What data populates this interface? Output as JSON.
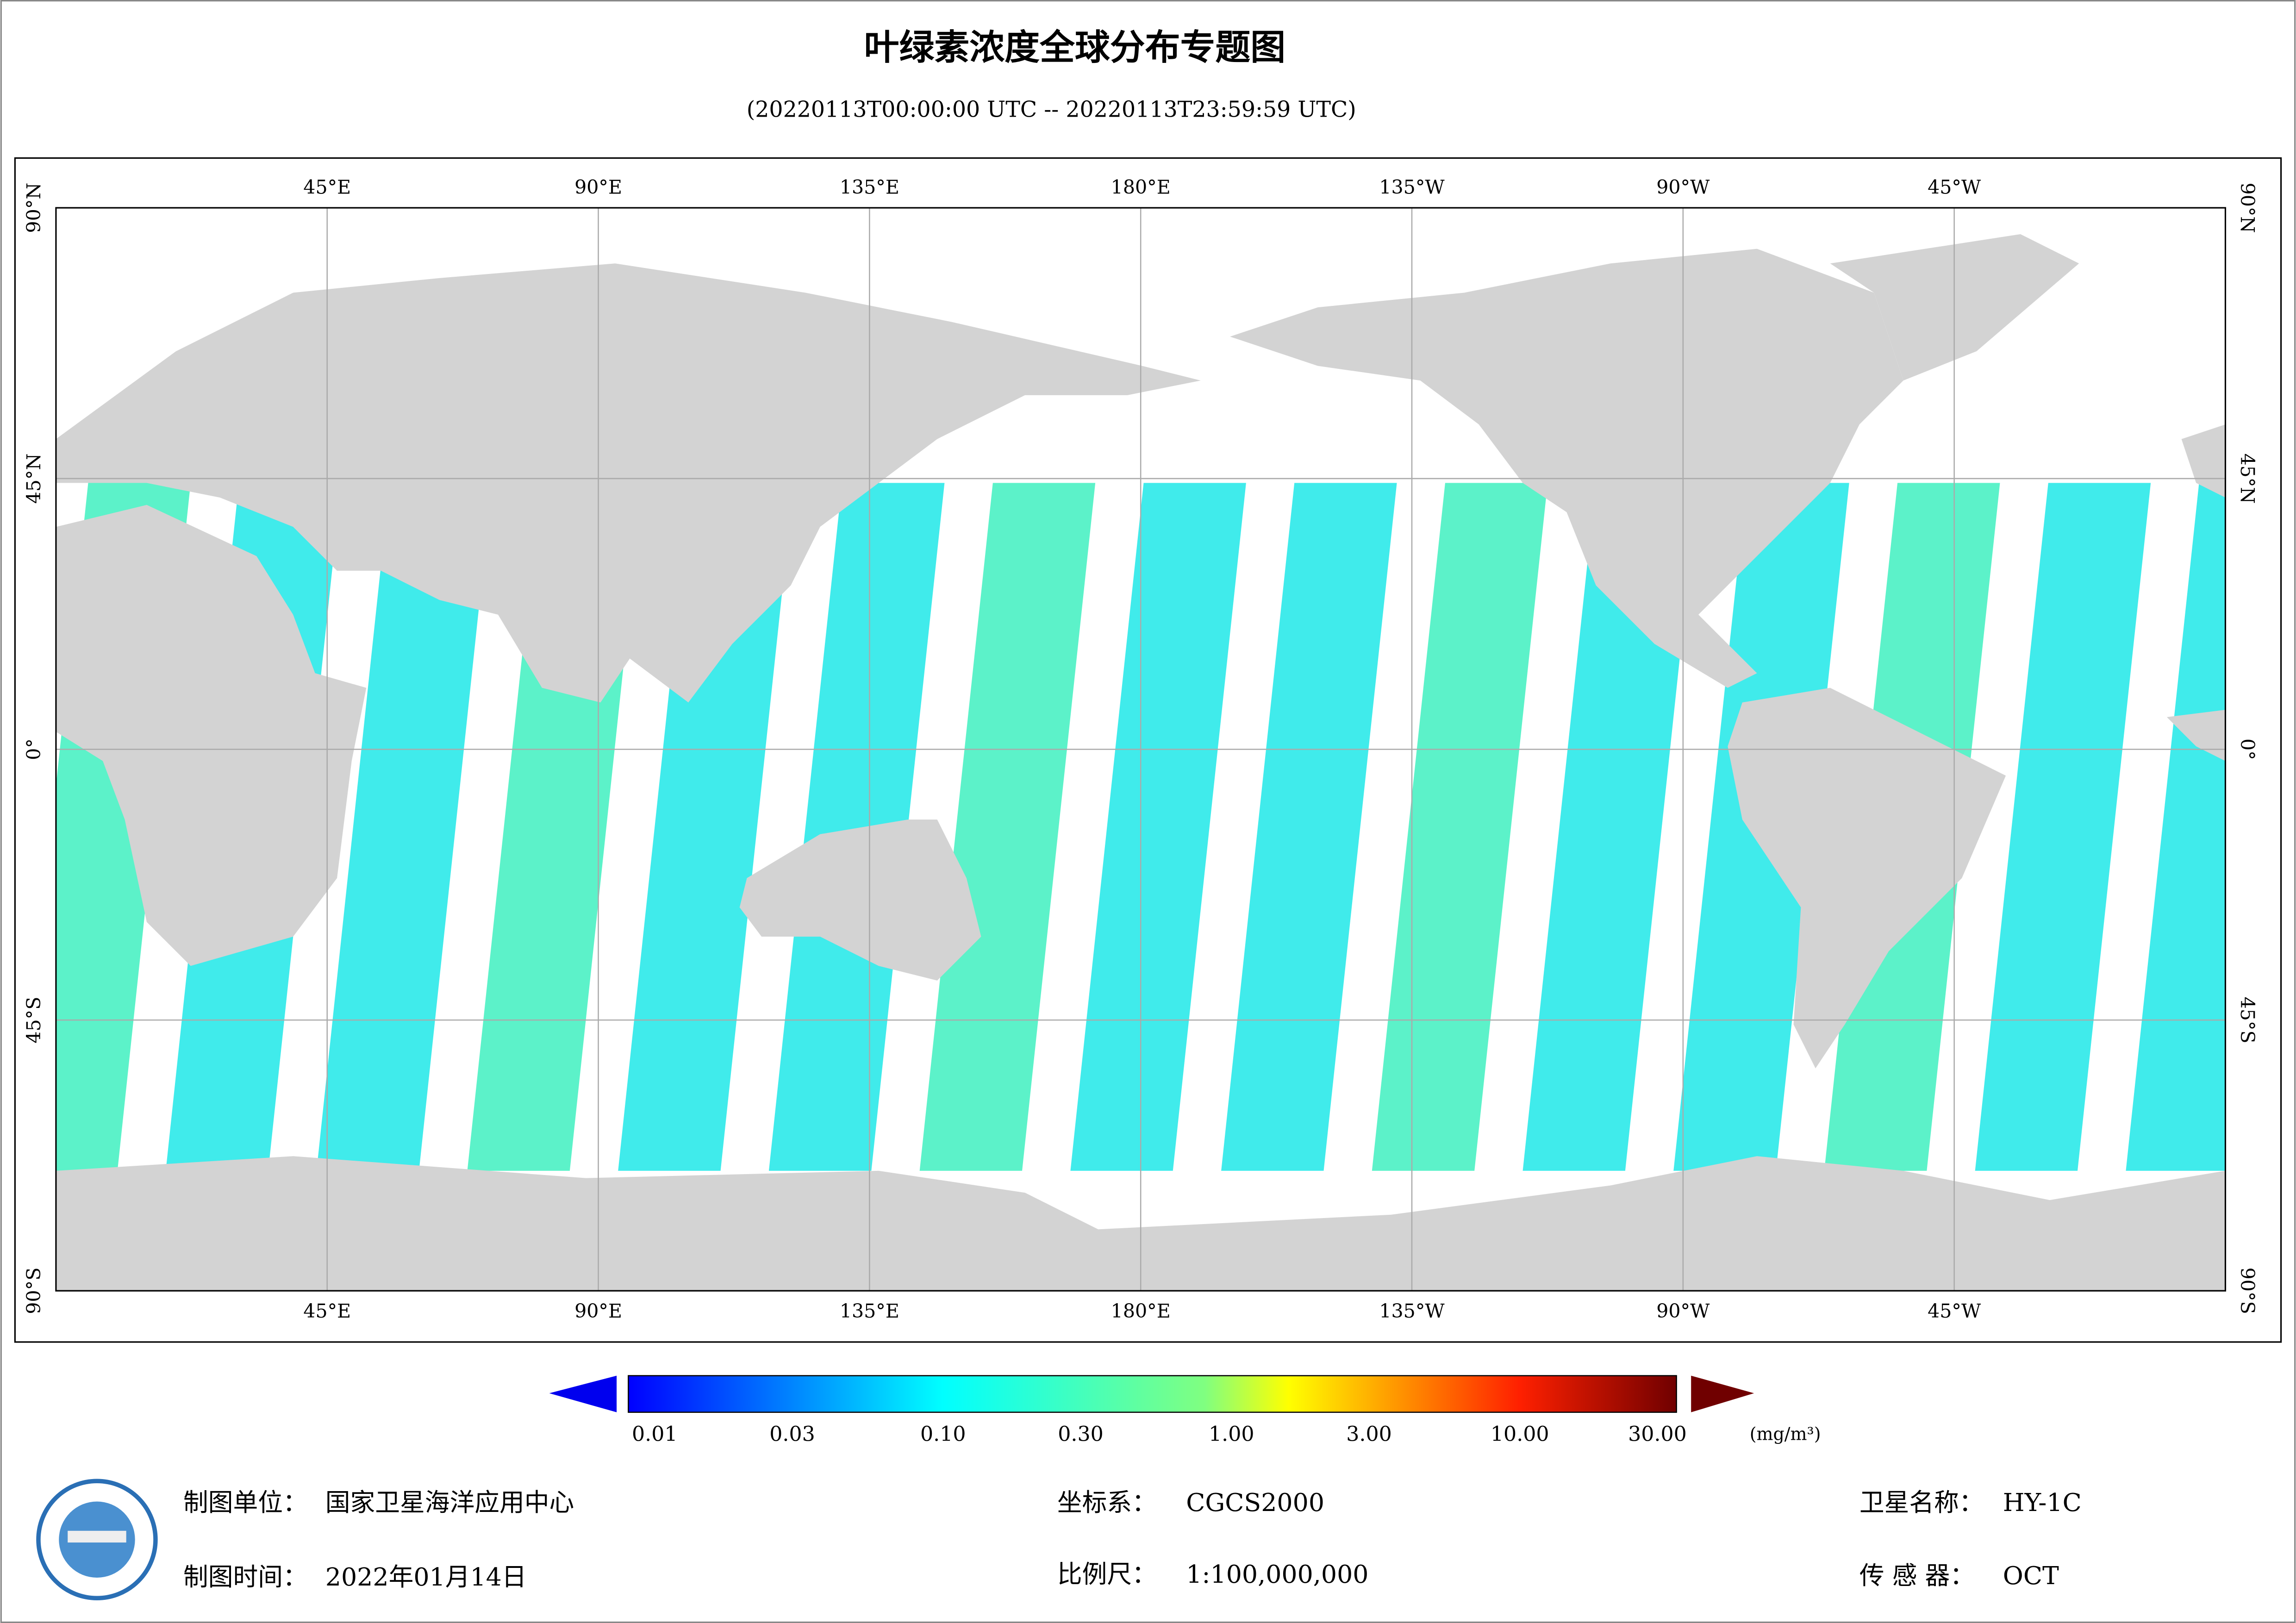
{
  "header": {
    "title": "叶绿素浓度全球分布专题图",
    "subtitle": "(20220113T00:00:00 UTC -- 20220113T23:59:59 UTC)"
  },
  "map": {
    "lonlim": [
      0,
      360
    ],
    "latlim": [
      -90,
      90
    ],
    "lon_ticks": [
      {
        "value": 45,
        "label": "45°E"
      },
      {
        "value": 90,
        "label": "90°E"
      },
      {
        "value": 135,
        "label": "135°E"
      },
      {
        "value": 180,
        "label": "180°E"
      },
      {
        "value": -135,
        "label": "135°W"
      },
      {
        "value": -90,
        "label": "90°W"
      },
      {
        "value": -45,
        "label": "45°W"
      }
    ],
    "lat_ticks": [
      {
        "value": 90,
        "label": "90°N"
      },
      {
        "value": 45,
        "label": "45°N"
      },
      {
        "value": 0,
        "label": "0°"
      },
      {
        "value": -45,
        "label": "45°S"
      },
      {
        "value": -90,
        "label": "90°S"
      }
    ],
    "grid": true
  },
  "colorbar": {
    "lim": [
      0.01,
      30
    ],
    "scale": "log",
    "ticks": [
      0.01,
      0.03,
      {
        "value": 0.1,
        "label": "0.10"
      },
      {
        "value": 0.3,
        "label": "0.30"
      },
      {
        "value": 1,
        "label": "1.00"
      },
      {
        "value": 3,
        "label": "3.00"
      },
      {
        "value": 10,
        "label": "10.00"
      },
      {
        "value": 30,
        "label": "30.00"
      }
    ],
    "unit": "(mg/m³)"
  },
  "footer": {
    "unit_label": "制图单位：",
    "unit_value": "国家卫星海洋应用中心",
    "time_label": "制图时间：",
    "time_value": "2022年01月14日",
    "crs_label": "坐标系：",
    "crs_value": "CGCS2000",
    "scale_label": "比例尺：",
    "scale_value": "1:100,000,000",
    "satellite_label": "卫星名称：",
    "satellite_value": "HY-1C",
    "sensor_label": "传 感 器：",
    "sensor_value": "OCT"
  }
}
